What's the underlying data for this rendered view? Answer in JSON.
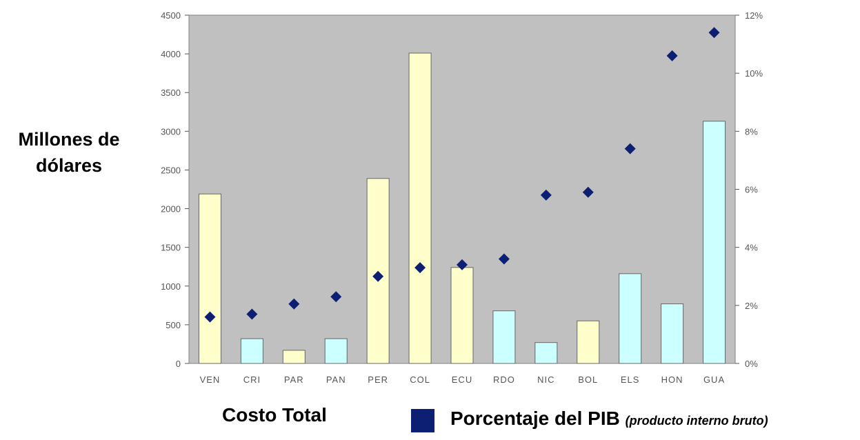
{
  "labels": {
    "y_title_line1": "Millones de",
    "y_title_line2": "dólares",
    "costo_total": "Costo Total",
    "legend_main": "Porcentaje del PIB",
    "legend_sub": "(producto interno bruto)"
  },
  "colors": {
    "plot_bg": "#c0c0c0",
    "bar_yellow": "#ffffcc",
    "bar_cyan": "#ccffff",
    "marker": "#0d1f73",
    "legend_swatch": "#0d1f73"
  },
  "chart_data": {
    "type": "bar",
    "categories": [
      "VEN",
      "CRI",
      "PAR",
      "PAN",
      "PER",
      "COL",
      "ECU",
      "RDO",
      "NIC",
      "BOL",
      "ELS",
      "HON",
      "GUA"
    ],
    "bar_colors": [
      "yellow",
      "cyan",
      "yellow",
      "cyan",
      "yellow",
      "yellow",
      "yellow",
      "cyan",
      "cyan",
      "yellow",
      "cyan",
      "cyan",
      "cyan"
    ],
    "series": [
      {
        "values": [
          2190,
          320,
          170,
          320,
          2390,
          4010,
          1240,
          680,
          270,
          550,
          1160,
          770,
          3130
        ]
      },
      {
        "name": "Porcentaje del PIB",
        "type": "scatter",
        "axis": "right",
        "marker": "diamond",
        "values": [
          1.6,
          1.7,
          2.05,
          2.3,
          3.0,
          3.3,
          3.4,
          3.6,
          5.8,
          5.9,
          7.4,
          10.6,
          11.4
        ]
      }
    ],
    "ylabel": "Millones de dólares",
    "ylim": [
      0,
      4500
    ],
    "yticks": [
      "0",
      "500",
      "1000",
      "1500",
      "2000",
      "2500",
      "3000",
      "3500",
      "4000",
      "4500"
    ],
    "y2lim": [
      0,
      12
    ],
    "y2ticks": [
      "0%",
      "2%",
      "4%",
      "6%",
      "8%",
      "10%",
      "12%"
    ],
    "grid": false,
    "legend": "bottom"
  }
}
